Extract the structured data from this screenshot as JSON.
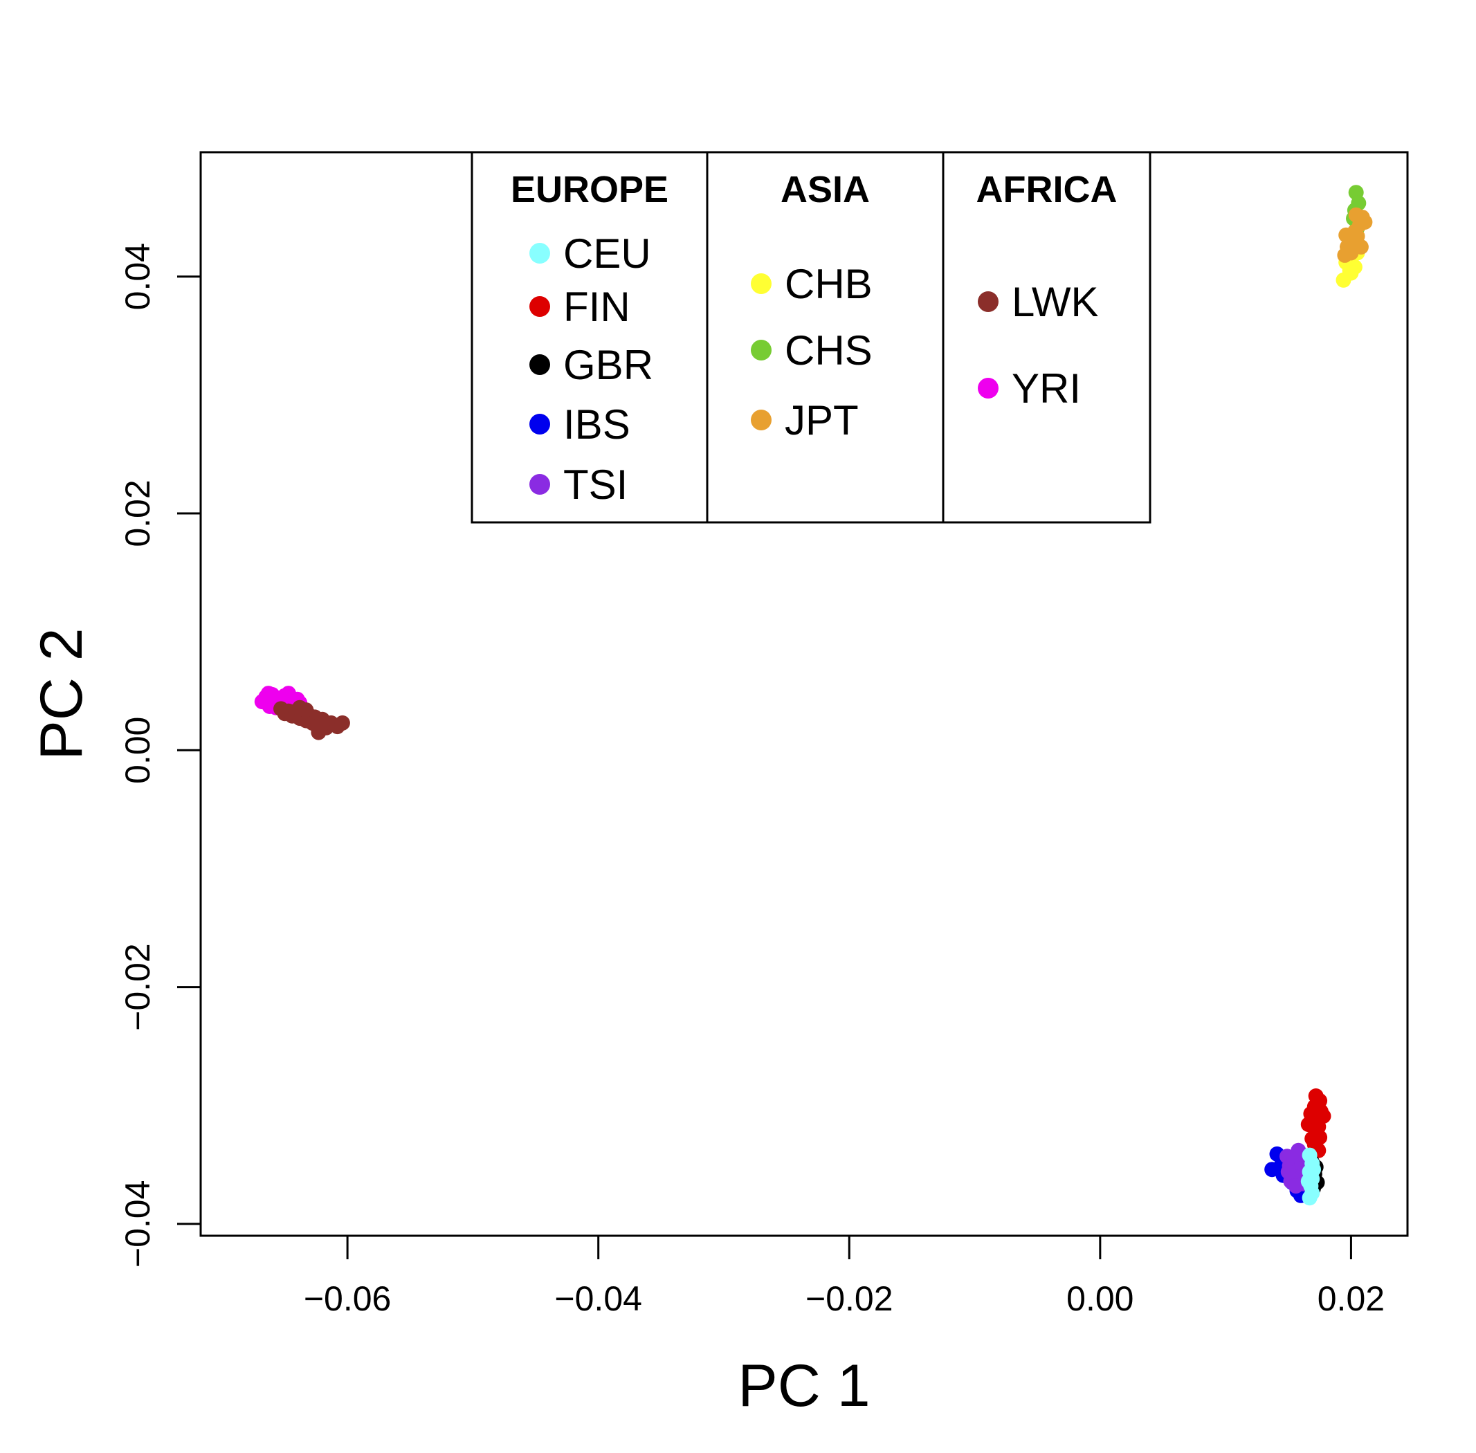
{
  "chart_data": {
    "type": "scatter",
    "title": "",
    "xlabel": "PC 1",
    "ylabel": "PC 2",
    "xlim": [
      -0.0717,
      0.0245
    ],
    "ylim": [
      -0.041,
      0.0505
    ],
    "x_ticks": [
      {
        "value": -0.06,
        "label": "−0.06"
      },
      {
        "value": -0.04,
        "label": "−0.04"
      },
      {
        "value": -0.02,
        "label": "−0.02"
      },
      {
        "value": 0.0,
        "label": "0.00"
      },
      {
        "value": 0.02,
        "label": "0.02"
      }
    ],
    "y_ticks": [
      {
        "value": -0.04,
        "label": "−0.04"
      },
      {
        "value": -0.02,
        "label": "−0.02"
      },
      {
        "value": 0.0,
        "label": "0.00"
      },
      {
        "value": 0.02,
        "label": "0.02"
      },
      {
        "value": 0.04,
        "label": "0.04"
      }
    ],
    "grid": false,
    "legend_position": "top-center",
    "legend_groups": [
      {
        "heading": "EUROPE",
        "entries": [
          "CEU",
          "FIN",
          "GBR",
          "IBS",
          "TSI"
        ]
      },
      {
        "heading": "ASIA",
        "entries": [
          "CHB",
          "CHS",
          "JPT"
        ]
      },
      {
        "heading": "AFRICA",
        "entries": [
          "LWK",
          "YRI"
        ]
      }
    ],
    "series": [
      {
        "name": "YRI",
        "color": "#ee00ee",
        "points": [
          [
            -0.0668,
            0.0041
          ],
          [
            -0.0665,
            0.0045
          ],
          [
            -0.0662,
            0.0037
          ],
          [
            -0.066,
            0.0047
          ],
          [
            -0.0658,
            0.0042
          ],
          [
            -0.0655,
            0.0044
          ],
          [
            -0.0653,
            0.0039
          ],
          [
            -0.065,
            0.0046
          ],
          [
            -0.0648,
            0.0041
          ],
          [
            -0.0645,
            0.0044
          ],
          [
            -0.0643,
            0.0038
          ],
          [
            -0.064,
            0.0043
          ],
          [
            -0.0638,
            0.004
          ],
          [
            -0.0663,
            0.0048
          ],
          [
            -0.0657,
            0.0036
          ],
          [
            -0.0647,
            0.0048
          ],
          [
            -0.0652,
            0.0035
          ]
        ]
      },
      {
        "name": "LWK",
        "color": "#8b2e2a",
        "points": [
          [
            -0.0653,
            0.0035
          ],
          [
            -0.065,
            0.0031
          ],
          [
            -0.0647,
            0.0033
          ],
          [
            -0.0644,
            0.0029
          ],
          [
            -0.0641,
            0.0033
          ],
          [
            -0.0638,
            0.0027
          ],
          [
            -0.0636,
            0.0031
          ],
          [
            -0.0633,
            0.0025
          ],
          [
            -0.0631,
            0.003
          ],
          [
            -0.0628,
            0.0023
          ],
          [
            -0.0626,
            0.0028
          ],
          [
            -0.0623,
            0.0015
          ],
          [
            -0.062,
            0.0026
          ],
          [
            -0.0617,
            0.0019
          ],
          [
            -0.0613,
            0.0023
          ],
          [
            -0.0608,
            0.002
          ],
          [
            -0.0604,
            0.0023
          ],
          [
            -0.0638,
            0.0036
          ],
          [
            -0.0633,
            0.0034
          ],
          [
            -0.0624,
            0.002
          ]
        ]
      },
      {
        "name": "CHB",
        "color": "#ffff33",
        "points": [
          [
            0.0194,
            0.0397
          ],
          [
            0.0196,
            0.0412
          ],
          [
            0.0199,
            0.0405
          ],
          [
            0.0201,
            0.0418
          ],
          [
            0.0203,
            0.0408
          ],
          [
            0.0205,
            0.042
          ],
          [
            0.0202,
            0.0425
          ],
          [
            0.0198,
            0.0415
          ],
          [
            0.02,
            0.0403
          ]
        ]
      },
      {
        "name": "CHS",
        "color": "#77cc33",
        "points": [
          [
            0.0204,
            0.0471
          ],
          [
            0.0206,
            0.0462
          ],
          [
            0.0203,
            0.0456
          ],
          [
            0.0207,
            0.0448
          ],
          [
            0.0205,
            0.0441
          ],
          [
            0.0202,
            0.0449
          ]
        ]
      },
      {
        "name": "JPT",
        "color": "#e8a030",
        "points": [
          [
            0.0195,
            0.0418
          ],
          [
            0.0197,
            0.0425
          ],
          [
            0.0199,
            0.0432
          ],
          [
            0.0201,
            0.0429
          ],
          [
            0.0203,
            0.0438
          ],
          [
            0.0205,
            0.0434
          ],
          [
            0.0207,
            0.0444
          ],
          [
            0.0209,
            0.045
          ],
          [
            0.0211,
            0.0446
          ],
          [
            0.02,
            0.042
          ],
          [
            0.0204,
            0.0452
          ],
          [
            0.0196,
            0.0435
          ],
          [
            0.0208,
            0.0425
          ]
        ]
      },
      {
        "name": "FIN",
        "color": "#dd0000",
        "points": [
          [
            0.0172,
            -0.0292
          ],
          [
            0.0175,
            -0.0296
          ],
          [
            0.0171,
            -0.0301
          ],
          [
            0.0176,
            -0.0305
          ],
          [
            0.0173,
            -0.031
          ],
          [
            0.017,
            -0.0314
          ],
          [
            0.0166,
            -0.0316
          ],
          [
            0.0174,
            -0.0318
          ],
          [
            0.0178,
            -0.0309
          ],
          [
            0.0172,
            -0.0323
          ],
          [
            0.0175,
            -0.0327
          ],
          [
            0.0171,
            -0.0333
          ],
          [
            0.0174,
            -0.0338
          ],
          [
            0.0169,
            -0.0328
          ],
          [
            0.0168,
            -0.0307
          ]
        ]
      },
      {
        "name": "GBR",
        "color": "#000000",
        "points": [
          [
            0.0169,
            -0.0348
          ],
          [
            0.0171,
            -0.0358
          ],
          [
            0.0173,
            -0.0365
          ],
          [
            0.017,
            -0.037
          ],
          [
            0.0168,
            -0.0362
          ],
          [
            0.0172,
            -0.0352
          ]
        ]
      },
      {
        "name": "IBS",
        "color": "#0000ee",
        "points": [
          [
            0.0137,
            -0.0354
          ],
          [
            0.0141,
            -0.0341
          ],
          [
            0.0145,
            -0.0349
          ],
          [
            0.0149,
            -0.0345
          ],
          [
            0.0153,
            -0.0365
          ],
          [
            0.0157,
            -0.0372
          ],
          [
            0.016,
            -0.0376
          ],
          [
            0.0155,
            -0.0352
          ],
          [
            0.0146,
            -0.0359
          ]
        ]
      },
      {
        "name": "TSI",
        "color": "#8a2be2",
        "points": [
          [
            0.0149,
            -0.0343
          ],
          [
            0.0151,
            -0.0351
          ],
          [
            0.0153,
            -0.0358
          ],
          [
            0.0155,
            -0.0346
          ],
          [
            0.0157,
            -0.0355
          ],
          [
            0.0159,
            -0.0362
          ],
          [
            0.0161,
            -0.0349
          ],
          [
            0.0163,
            -0.0357
          ],
          [
            0.0152,
            -0.0364
          ],
          [
            0.0156,
            -0.0368
          ],
          [
            0.016,
            -0.0341
          ],
          [
            0.0158,
            -0.0338
          ],
          [
            0.0162,
            -0.0366
          ],
          [
            0.015,
            -0.0356
          ]
        ]
      },
      {
        "name": "CEU",
        "color": "#88ffff",
        "points": [
          [
            0.0167,
            -0.0342
          ],
          [
            0.0169,
            -0.0349
          ],
          [
            0.0167,
            -0.0356
          ],
          [
            0.0169,
            -0.0362
          ],
          [
            0.0168,
            -0.0368
          ],
          [
            0.0169,
            -0.0374
          ],
          [
            0.0167,
            -0.0378
          ],
          [
            0.017,
            -0.0354
          ],
          [
            0.0166,
            -0.0364
          ]
        ]
      }
    ]
  }
}
